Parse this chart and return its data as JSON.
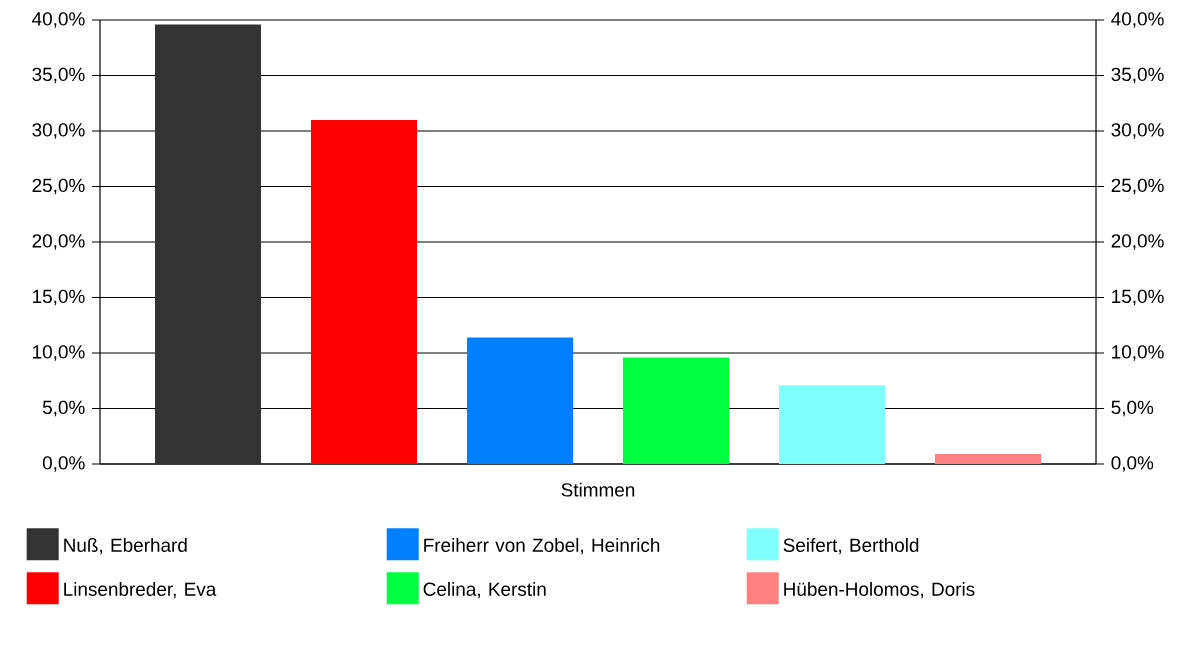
{
  "chart_data": {
    "type": "bar",
    "categories": [
      "Stimmen"
    ],
    "series": [
      {
        "name": "Nuß, Eberhard",
        "color": "#333333",
        "values": [
          39.6
        ]
      },
      {
        "name": "Linsenbreder, Eva",
        "color": "#ff0000",
        "values": [
          31.0
        ]
      },
      {
        "name": "Freiherr von Zobel, Heinrich",
        "color": "#0080ff",
        "values": [
          11.4
        ]
      },
      {
        "name": "Celina, Kerstin",
        "color": "#00ff40",
        "values": [
          9.6
        ]
      },
      {
        "name": "Seifert, Berthold",
        "color": "#80ffff",
        "values": [
          7.1
        ]
      },
      {
        "name": "Hüben-Holomos, Doris",
        "color": "#ff8080",
        "values": [
          0.9
        ]
      }
    ],
    "ylim": [
      0,
      40
    ],
    "yticks": [
      {
        "value": 0,
        "label": "0,0%"
      },
      {
        "value": 5,
        "label": "5,0%"
      },
      {
        "value": 10,
        "label": "10,0%"
      },
      {
        "value": 15,
        "label": "15,0%"
      },
      {
        "value": 20,
        "label": "20,0%"
      },
      {
        "value": 25,
        "label": "25,0%"
      },
      {
        "value": 30,
        "label": "30,0%"
      },
      {
        "value": 35,
        "label": "35,0%"
      },
      {
        "value": 40,
        "label": "40,0%"
      }
    ],
    "grid": "y",
    "legend": "bottom"
  }
}
